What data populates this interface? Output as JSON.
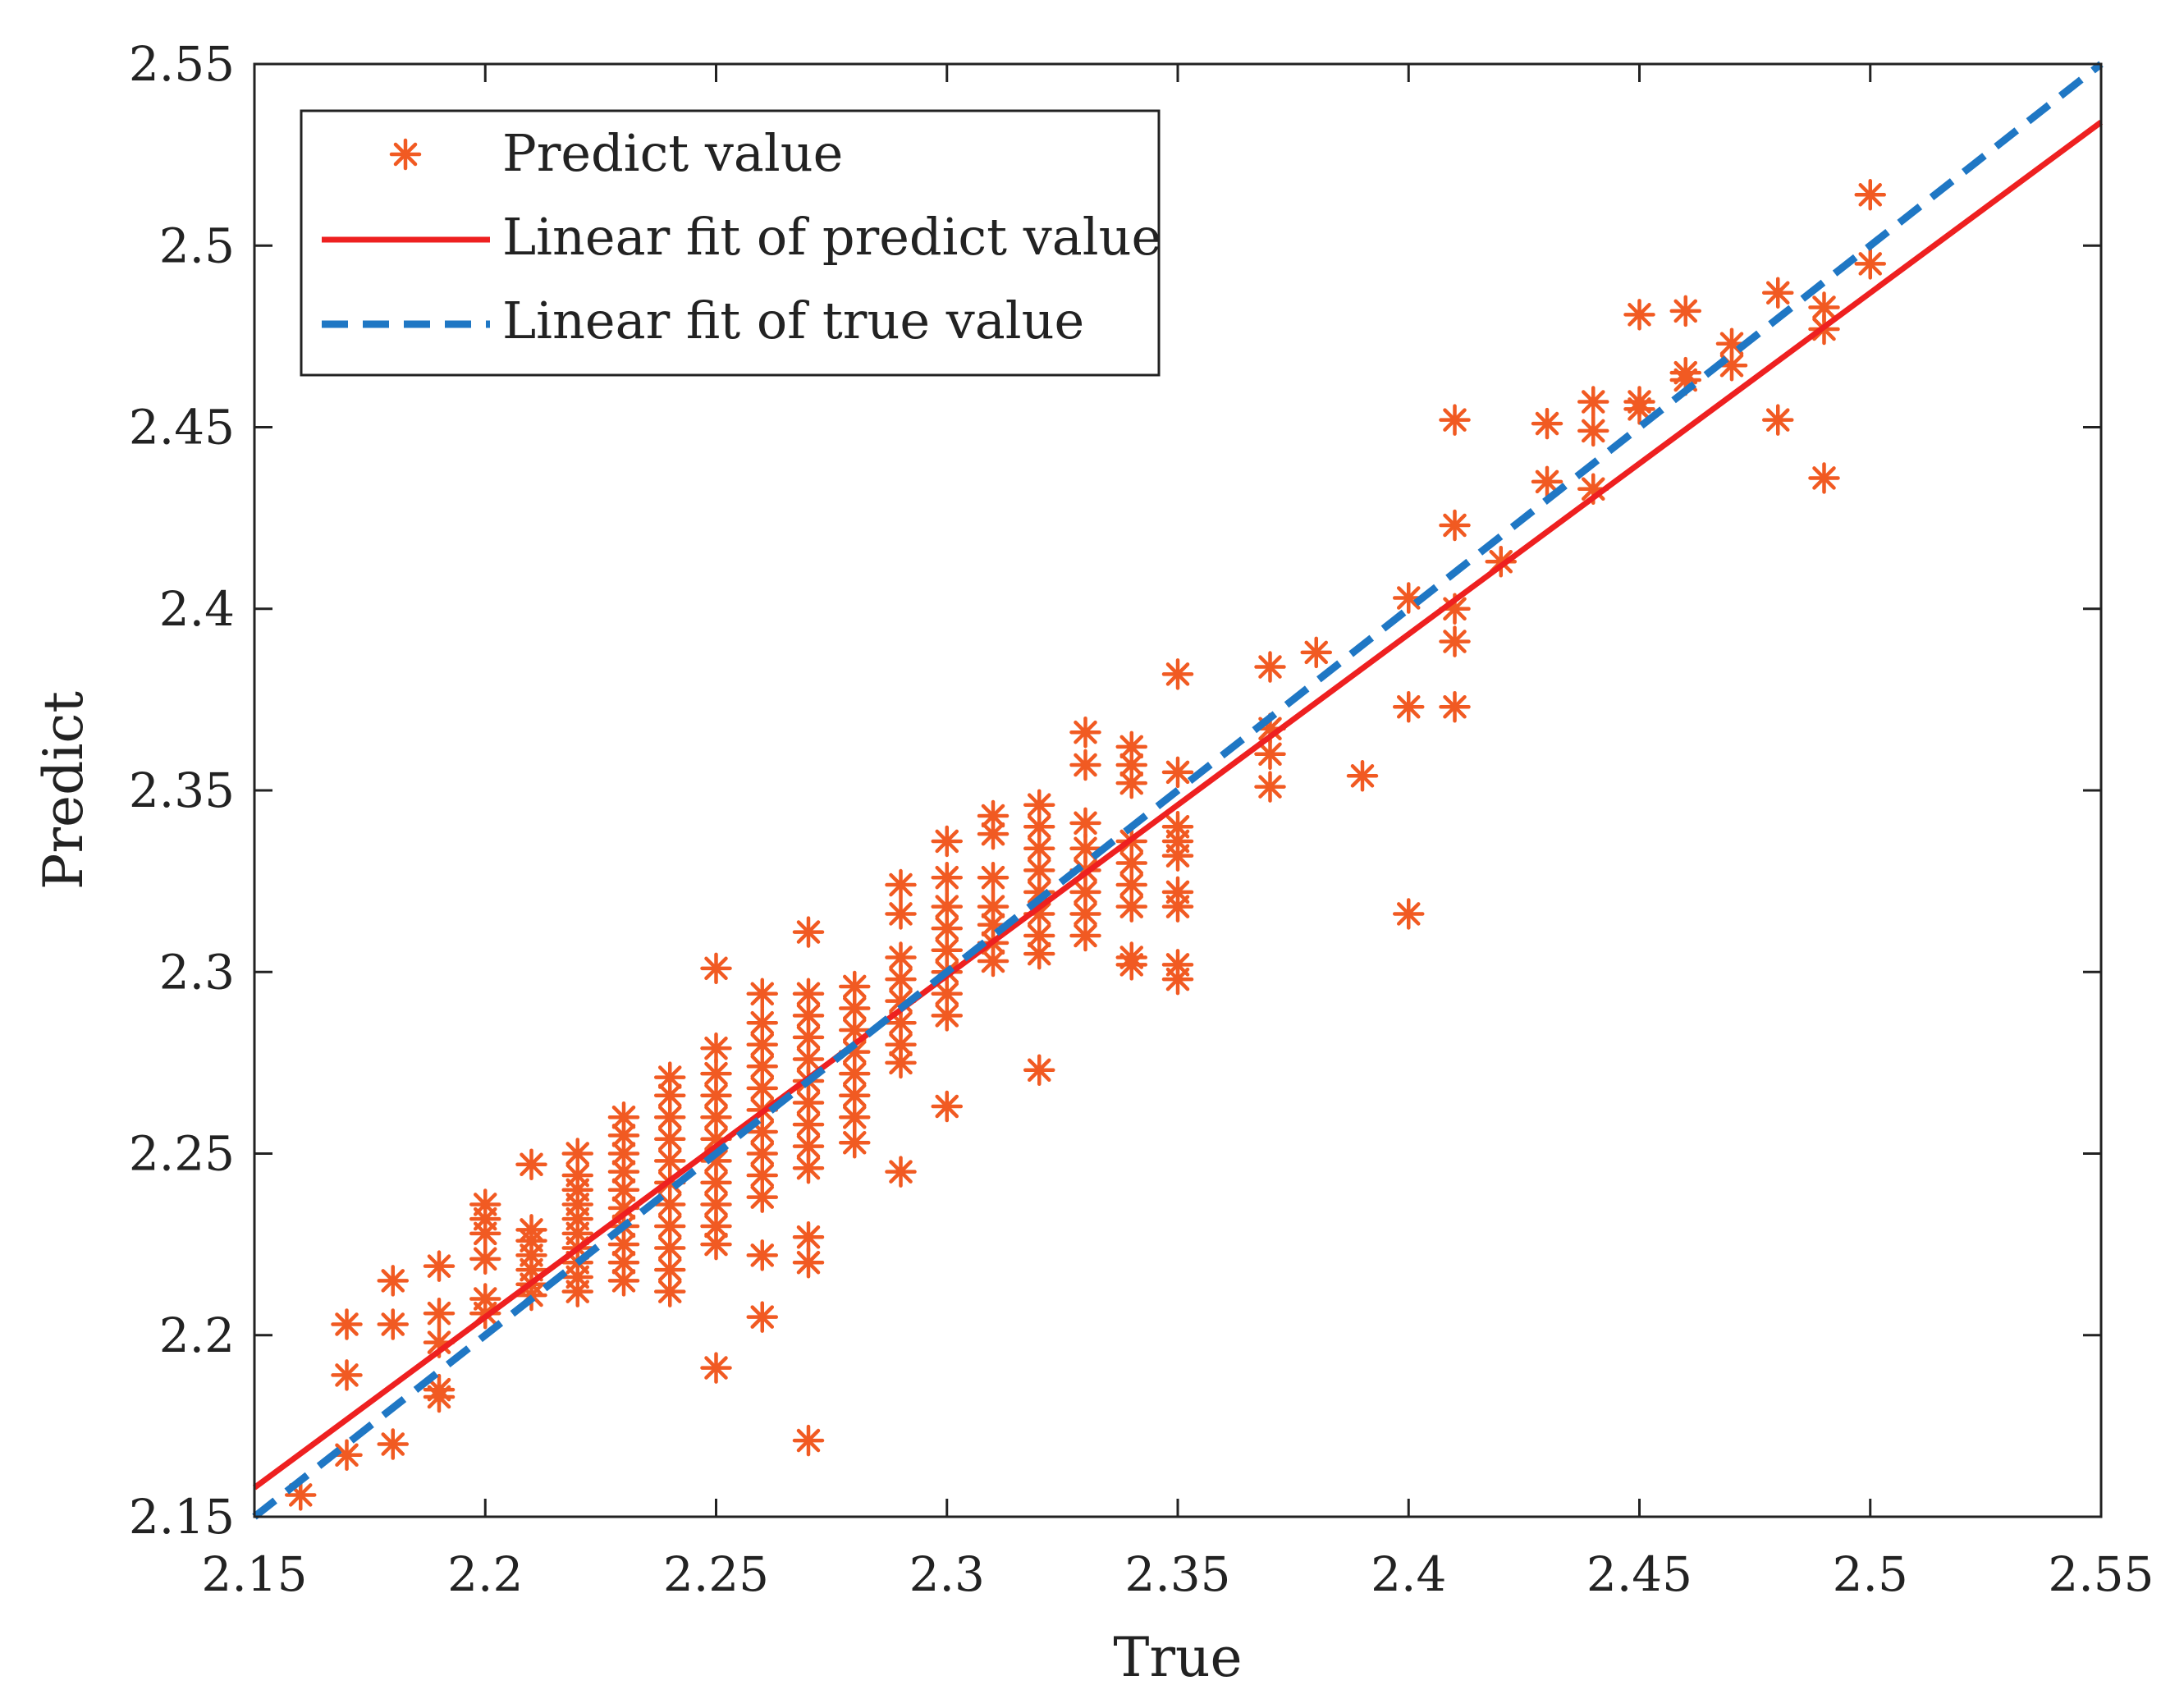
{
  "chart_data": {
    "type": "scatter",
    "title": "",
    "xlabel": "True",
    "ylabel": "Predict",
    "xlim": [
      2.15,
      2.55
    ],
    "ylim": [
      2.15,
      2.55
    ],
    "xticks": [
      2.15,
      2.2,
      2.25,
      2.3,
      2.35,
      2.4,
      2.45,
      2.5,
      2.55
    ],
    "xtick_labels": [
      "2.15",
      "2.2",
      "2.25",
      "2.3",
      "2.35",
      "2.4",
      "2.45",
      "2.5",
      "2.55"
    ],
    "yticks": [
      2.15,
      2.2,
      2.25,
      2.3,
      2.35,
      2.4,
      2.45,
      2.5,
      2.55
    ],
    "ytick_labels": [
      "2.15",
      "2.2",
      "2.25",
      "2.3",
      "2.35",
      "2.4",
      "2.45",
      "2.5",
      "2.55"
    ],
    "grid": false,
    "legend_position": "top-left",
    "colors": {
      "scatter": "#f15a22",
      "predict_fit": "#ee2020",
      "true_fit": "#1f77c4",
      "axes": "#222222"
    },
    "series": [
      {
        "name": "Predict value",
        "kind": "scatter",
        "marker": "asterisk",
        "points": [
          [
            2.16,
            2.156
          ],
          [
            2.17,
            2.167
          ],
          [
            2.17,
            2.189
          ],
          [
            2.17,
            2.203
          ],
          [
            2.18,
            2.17
          ],
          [
            2.18,
            2.203
          ],
          [
            2.18,
            2.215
          ],
          [
            2.19,
            2.183
          ],
          [
            2.19,
            2.185
          ],
          [
            2.19,
            2.198
          ],
          [
            2.19,
            2.206
          ],
          [
            2.19,
            2.219
          ],
          [
            2.2,
            2.206
          ],
          [
            2.2,
            2.21
          ],
          [
            2.2,
            2.221
          ],
          [
            2.2,
            2.228
          ],
          [
            2.2,
            2.232
          ],
          [
            2.2,
            2.236
          ],
          [
            2.21,
            2.211
          ],
          [
            2.21,
            2.214
          ],
          [
            2.21,
            2.218
          ],
          [
            2.21,
            2.222
          ],
          [
            2.21,
            2.226
          ],
          [
            2.21,
            2.229
          ],
          [
            2.21,
            2.247
          ],
          [
            2.22,
            2.212
          ],
          [
            2.22,
            2.216
          ],
          [
            2.22,
            2.22
          ],
          [
            2.22,
            2.224
          ],
          [
            2.22,
            2.228
          ],
          [
            2.22,
            2.232
          ],
          [
            2.22,
            2.236
          ],
          [
            2.22,
            2.24
          ],
          [
            2.22,
            2.244
          ],
          [
            2.22,
            2.25
          ],
          [
            2.23,
            2.215
          ],
          [
            2.23,
            2.22
          ],
          [
            2.23,
            2.225
          ],
          [
            2.23,
            2.23
          ],
          [
            2.23,
            2.235
          ],
          [
            2.23,
            2.24
          ],
          [
            2.23,
            2.245
          ],
          [
            2.23,
            2.25
          ],
          [
            2.23,
            2.255
          ],
          [
            2.23,
            2.26
          ],
          [
            2.24,
            2.212
          ],
          [
            2.24,
            2.218
          ],
          [
            2.24,
            2.224
          ],
          [
            2.24,
            2.23
          ],
          [
            2.24,
            2.236
          ],
          [
            2.24,
            2.242
          ],
          [
            2.24,
            2.248
          ],
          [
            2.24,
            2.254
          ],
          [
            2.24,
            2.26
          ],
          [
            2.24,
            2.266
          ],
          [
            2.24,
            2.271
          ],
          [
            2.25,
            2.191
          ],
          [
            2.25,
            2.225
          ],
          [
            2.25,
            2.23
          ],
          [
            2.25,
            2.236
          ],
          [
            2.25,
            2.242
          ],
          [
            2.25,
            2.248
          ],
          [
            2.25,
            2.254
          ],
          [
            2.25,
            2.26
          ],
          [
            2.25,
            2.266
          ],
          [
            2.25,
            2.272
          ],
          [
            2.25,
            2.279
          ],
          [
            2.25,
            2.301
          ],
          [
            2.26,
            2.205
          ],
          [
            2.26,
            2.222
          ],
          [
            2.26,
            2.238
          ],
          [
            2.26,
            2.244
          ],
          [
            2.26,
            2.25
          ],
          [
            2.26,
            2.256
          ],
          [
            2.26,
            2.262
          ],
          [
            2.26,
            2.268
          ],
          [
            2.26,
            2.274
          ],
          [
            2.26,
            2.28
          ],
          [
            2.26,
            2.286
          ],
          [
            2.26,
            2.294
          ],
          [
            2.27,
            2.171
          ],
          [
            2.27,
            2.22
          ],
          [
            2.27,
            2.227
          ],
          [
            2.27,
            2.246
          ],
          [
            2.27,
            2.252
          ],
          [
            2.27,
            2.258
          ],
          [
            2.27,
            2.264
          ],
          [
            2.27,
            2.27
          ],
          [
            2.27,
            2.276
          ],
          [
            2.27,
            2.282
          ],
          [
            2.27,
            2.288
          ],
          [
            2.27,
            2.294
          ],
          [
            2.27,
            2.311
          ],
          [
            2.28,
            2.253
          ],
          [
            2.28,
            2.26
          ],
          [
            2.28,
            2.266
          ],
          [
            2.28,
            2.272
          ],
          [
            2.28,
            2.278
          ],
          [
            2.28,
            2.284
          ],
          [
            2.28,
            2.29
          ],
          [
            2.28,
            2.296
          ],
          [
            2.29,
            2.245
          ],
          [
            2.29,
            2.275
          ],
          [
            2.29,
            2.28
          ],
          [
            2.29,
            2.286
          ],
          [
            2.29,
            2.292
          ],
          [
            2.29,
            2.298
          ],
          [
            2.29,
            2.304
          ],
          [
            2.29,
            2.316
          ],
          [
            2.29,
            2.324
          ],
          [
            2.3,
            2.263
          ],
          [
            2.3,
            2.288
          ],
          [
            2.3,
            2.294
          ],
          [
            2.3,
            2.3
          ],
          [
            2.3,
            2.306
          ],
          [
            2.3,
            2.312
          ],
          [
            2.3,
            2.318
          ],
          [
            2.3,
            2.326
          ],
          [
            2.3,
            2.336
          ],
          [
            2.31,
            2.303
          ],
          [
            2.31,
            2.308
          ],
          [
            2.31,
            2.313
          ],
          [
            2.31,
            2.318
          ],
          [
            2.31,
            2.326
          ],
          [
            2.31,
            2.338
          ],
          [
            2.31,
            2.343
          ],
          [
            2.32,
            2.273
          ],
          [
            2.32,
            2.305
          ],
          [
            2.32,
            2.31
          ],
          [
            2.32,
            2.316
          ],
          [
            2.32,
            2.322
          ],
          [
            2.32,
            2.328
          ],
          [
            2.32,
            2.334
          ],
          [
            2.32,
            2.34
          ],
          [
            2.32,
            2.346
          ],
          [
            2.33,
            2.31
          ],
          [
            2.33,
            2.316
          ],
          [
            2.33,
            2.322
          ],
          [
            2.33,
            2.328
          ],
          [
            2.33,
            2.334
          ],
          [
            2.33,
            2.341
          ],
          [
            2.33,
            2.357
          ],
          [
            2.33,
            2.366
          ],
          [
            2.34,
            2.302
          ],
          [
            2.34,
            2.304
          ],
          [
            2.34,
            2.318
          ],
          [
            2.34,
            2.324
          ],
          [
            2.34,
            2.33
          ],
          [
            2.34,
            2.336
          ],
          [
            2.34,
            2.352
          ],
          [
            2.34,
            2.357
          ],
          [
            2.34,
            2.362
          ],
          [
            2.35,
            2.298
          ],
          [
            2.35,
            2.302
          ],
          [
            2.35,
            2.318
          ],
          [
            2.35,
            2.322
          ],
          [
            2.35,
            2.332
          ],
          [
            2.35,
            2.336
          ],
          [
            2.35,
            2.34
          ],
          [
            2.35,
            2.355
          ],
          [
            2.35,
            2.382
          ],
          [
            2.37,
            2.351
          ],
          [
            2.37,
            2.36
          ],
          [
            2.37,
            2.367
          ],
          [
            2.37,
            2.384
          ],
          [
            2.38,
            2.388
          ],
          [
            2.39,
            2.354
          ],
          [
            2.4,
            2.316
          ],
          [
            2.4,
            2.373
          ],
          [
            2.4,
            2.403
          ],
          [
            2.41,
            2.373
          ],
          [
            2.41,
            2.391
          ],
          [
            2.41,
            2.4
          ],
          [
            2.41,
            2.423
          ],
          [
            2.41,
            2.452
          ],
          [
            2.42,
            2.413
          ],
          [
            2.43,
            2.435
          ],
          [
            2.43,
            2.451
          ],
          [
            2.44,
            2.433
          ],
          [
            2.44,
            2.449
          ],
          [
            2.44,
            2.457
          ],
          [
            2.45,
            2.455
          ],
          [
            2.45,
            2.457
          ],
          [
            2.45,
            2.481
          ],
          [
            2.46,
            2.463
          ],
          [
            2.46,
            2.465
          ],
          [
            2.46,
            2.482
          ],
          [
            2.47,
            2.467
          ],
          [
            2.47,
            2.473
          ],
          [
            2.48,
            2.452
          ],
          [
            2.48,
            2.487
          ],
          [
            2.49,
            2.436
          ],
          [
            2.49,
            2.477
          ],
          [
            2.49,
            2.483
          ],
          [
            2.5,
            2.495
          ],
          [
            2.5,
            2.514
          ]
        ]
      },
      {
        "name": "Linear fit of predict value",
        "kind": "line",
        "style": "solid",
        "x": [
          2.15,
          2.55
        ],
        "y": [
          2.158,
          2.534
        ]
      },
      {
        "name": "Linear fit of true value",
        "kind": "line",
        "style": "dashed",
        "x": [
          2.15,
          2.55
        ],
        "y": [
          2.15,
          2.55
        ]
      }
    ]
  }
}
